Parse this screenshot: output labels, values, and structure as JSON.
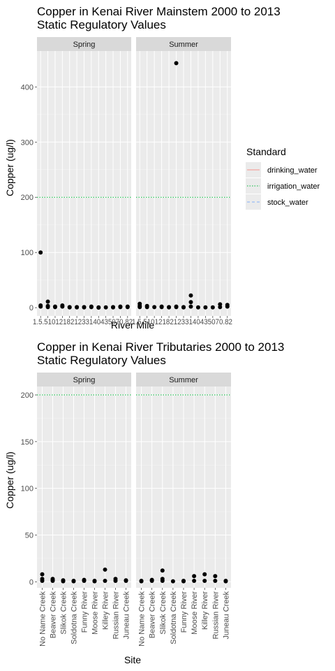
{
  "legend": {
    "title": "Standard",
    "items": [
      {
        "label": "drinking_water",
        "color": "#F8766D",
        "dash": "solid"
      },
      {
        "label": "irrigation_water",
        "color": "#00BA38",
        "dash": "dotted"
      },
      {
        "label": "stock_water",
        "color": "#619CFF",
        "dash": "dashed"
      }
    ]
  },
  "chart_data": [
    {
      "type": "scatter",
      "title_line1": "Copper in Kenai River Mainstem  2000 to 2013",
      "title_line2": "Static Regulatory Values",
      "xlabel": "River Mile",
      "ylabel": "Copper (ug/l)",
      "ylim": [
        -15,
        465
      ],
      "yticks": [
        0,
        100,
        200,
        300,
        400
      ],
      "grid": true,
      "facets": [
        "Spring",
        "Summer"
      ],
      "categories": [
        "1.5",
        "6.5",
        "10",
        "12",
        "18",
        "21",
        "23",
        "31",
        "40",
        "43",
        "50",
        "70",
        "82"
      ],
      "x_tick_text": "1.5.510121821233140435070.82",
      "reference_lines": [
        {
          "standard": "irrigation_water",
          "value": 200
        }
      ],
      "series": [
        {
          "facet": "Spring",
          "points": [
            [
              "1.5",
              100
            ],
            [
              "1.5",
              4
            ],
            [
              "1.5",
              2
            ],
            [
              "6.5",
              11
            ],
            [
              "6.5",
              3
            ],
            [
              "6.5",
              1
            ],
            [
              "10",
              2
            ],
            [
              "10",
              1
            ],
            [
              "12",
              4
            ],
            [
              "12",
              2
            ],
            [
              "18",
              1
            ],
            [
              "18",
              0.5
            ],
            [
              "21",
              1
            ],
            [
              "21",
              0.5
            ],
            [
              "23",
              1
            ],
            [
              "23",
              0.5
            ],
            [
              "31",
              1
            ],
            [
              "31",
              2
            ],
            [
              "40",
              0.5
            ],
            [
              "40",
              0
            ],
            [
              "43",
              0.5
            ],
            [
              "50",
              0.5
            ],
            [
              "50",
              1
            ],
            [
              "70",
              1
            ],
            [
              "70",
              2
            ],
            [
              "82",
              2
            ],
            [
              "82",
              1
            ]
          ]
        },
        {
          "facet": "Summer",
          "points": [
            [
              "1.5",
              7
            ],
            [
              "1.5",
              3
            ],
            [
              "1.5",
              1
            ],
            [
              "6.5",
              3
            ],
            [
              "6.5",
              1
            ],
            [
              "10",
              1
            ],
            [
              "12",
              2
            ],
            [
              "12",
              1
            ],
            [
              "18",
              1
            ],
            [
              "18",
              0.5
            ],
            [
              "21",
              443
            ],
            [
              "21",
              2
            ],
            [
              "21",
              1
            ],
            [
              "23",
              0.5
            ],
            [
              "23",
              1
            ],
            [
              "31",
              22
            ],
            [
              "31",
              10
            ],
            [
              "31",
              2
            ],
            [
              "40",
              0.5
            ],
            [
              "43",
              0.5
            ],
            [
              "50",
              0.5
            ],
            [
              "70",
              6
            ],
            [
              "70",
              1
            ],
            [
              "82",
              5
            ],
            [
              "82",
              2
            ]
          ]
        }
      ]
    },
    {
      "type": "scatter",
      "title_line1": "Copper in Kenai River Tributaries  2000 to 2013",
      "title_line2": "Static Regulatory Values",
      "xlabel": "Site",
      "ylabel": "Copper (ug/l)",
      "ylim": [
        -6.5,
        209
      ],
      "yticks": [
        0,
        50,
        100,
        150,
        200
      ],
      "grid": true,
      "facets": [
        "Spring",
        "Summer"
      ],
      "categories": [
        "No Name Creek",
        "Beaver Creek",
        "Slikok Creek",
        "Soldotna Creek",
        "Funny River",
        "Moose River",
        "Killey River",
        "Russian River",
        "Juneau Creek"
      ],
      "reference_lines": [
        {
          "standard": "irrigation_water",
          "value": 200
        }
      ],
      "series": [
        {
          "facet": "Spring",
          "points": [
            [
              "No Name Creek",
              8
            ],
            [
              "No Name Creek",
              3
            ],
            [
              "No Name Creek",
              1
            ],
            [
              "Beaver Creek",
              3
            ],
            [
              "Beaver Creek",
              2
            ],
            [
              "Beaver Creek",
              1
            ],
            [
              "Slikok Creek",
              1.5
            ],
            [
              "Slikok Creek",
              0.5
            ],
            [
              "Soldotna Creek",
              1
            ],
            [
              "Soldotna Creek",
              0.5
            ],
            [
              "Funny River",
              2
            ],
            [
              "Funny River",
              1
            ],
            [
              "Moose River",
              1
            ],
            [
              "Moose River",
              0.5
            ],
            [
              "Killey River",
              13
            ],
            [
              "Killey River",
              1
            ],
            [
              "Russian River",
              3
            ],
            [
              "Russian River",
              1
            ],
            [
              "Juneau Creek",
              1.5
            ],
            [
              "Juneau Creek",
              1
            ]
          ]
        },
        {
          "facet": "Summer",
          "points": [
            [
              "No Name Creek",
              1
            ],
            [
              "No Name Creek",
              0.5
            ],
            [
              "Beaver Creek",
              2
            ],
            [
              "Beaver Creek",
              1
            ],
            [
              "Slikok Creek",
              12
            ],
            [
              "Slikok Creek",
              3
            ],
            [
              "Slikok Creek",
              1
            ],
            [
              "Soldotna Creek",
              0.5
            ],
            [
              "Funny River",
              1
            ],
            [
              "Funny River",
              0.5
            ],
            [
              "Moose River",
              6
            ],
            [
              "Moose River",
              1
            ],
            [
              "Killey River",
              8
            ],
            [
              "Killey River",
              1
            ],
            [
              "Russian River",
              6
            ],
            [
              "Russian River",
              1
            ],
            [
              "Juneau Creek",
              1
            ],
            [
              "Juneau Creek",
              0.5
            ]
          ]
        }
      ]
    }
  ]
}
